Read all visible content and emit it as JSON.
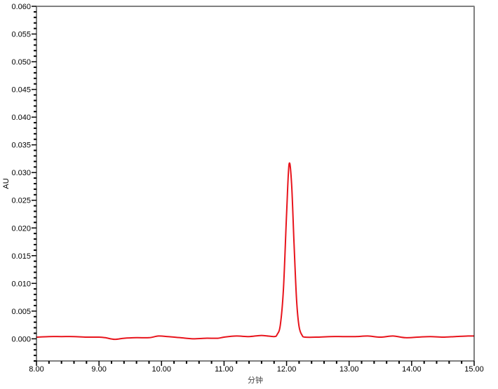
{
  "chart_data": {
    "type": "line",
    "title": "",
    "xlabel": "分钟",
    "ylabel": "AU",
    "xlim": [
      8.0,
      15.0
    ],
    "ylim": [
      -0.004,
      0.06
    ],
    "x_major_step": 1.0,
    "x_minor_step": 0.2,
    "y_major_step": 0.005,
    "y_minor_step": 0.001,
    "x_tick_labels": [
      "8.00",
      "9.00",
      "10.00",
      "11.00",
      "12.00",
      "13.00",
      "14.00",
      "15.00"
    ],
    "y_tick_labels": [
      "0.000",
      "0.005",
      "0.010",
      "0.015",
      "0.020",
      "0.025",
      "0.030",
      "0.035",
      "0.040",
      "0.045",
      "0.050",
      "0.055",
      "0.060"
    ],
    "grid": false,
    "line_color": "#e8141c",
    "series": [
      {
        "x": [
          8.0,
          8.2,
          8.4,
          8.6,
          8.8,
          9.0,
          9.1,
          9.25,
          9.4,
          9.6,
          9.8,
          9.95,
          10.1,
          10.3,
          10.5,
          10.7,
          10.9,
          11.0,
          11.2,
          11.4,
          11.6,
          11.8,
          11.85,
          11.9,
          11.95,
          12.0,
          12.04,
          12.08,
          12.12,
          12.16,
          12.2,
          12.25,
          12.3,
          12.5,
          12.7,
          12.9,
          13.1,
          13.3,
          13.5,
          13.7,
          13.9,
          14.1,
          14.3,
          14.5,
          14.7,
          14.9,
          15.0
        ],
        "y": [
          0.0003,
          0.0004,
          0.0004,
          0.0004,
          0.0003,
          0.0003,
          0.0002,
          -0.0001,
          0.0001,
          0.0002,
          0.0002,
          0.0005,
          0.0004,
          0.0002,
          0.0,
          0.0001,
          0.0001,
          0.0003,
          0.0005,
          0.0004,
          0.0006,
          0.0004,
          0.0008,
          0.0025,
          0.009,
          0.0225,
          0.0315,
          0.028,
          0.017,
          0.007,
          0.0022,
          0.0006,
          0.0003,
          0.0003,
          0.0004,
          0.0004,
          0.0004,
          0.0005,
          0.0003,
          0.0005,
          0.0002,
          0.0003,
          0.0004,
          0.0003,
          0.0004,
          0.0005,
          0.0005
        ]
      }
    ]
  }
}
